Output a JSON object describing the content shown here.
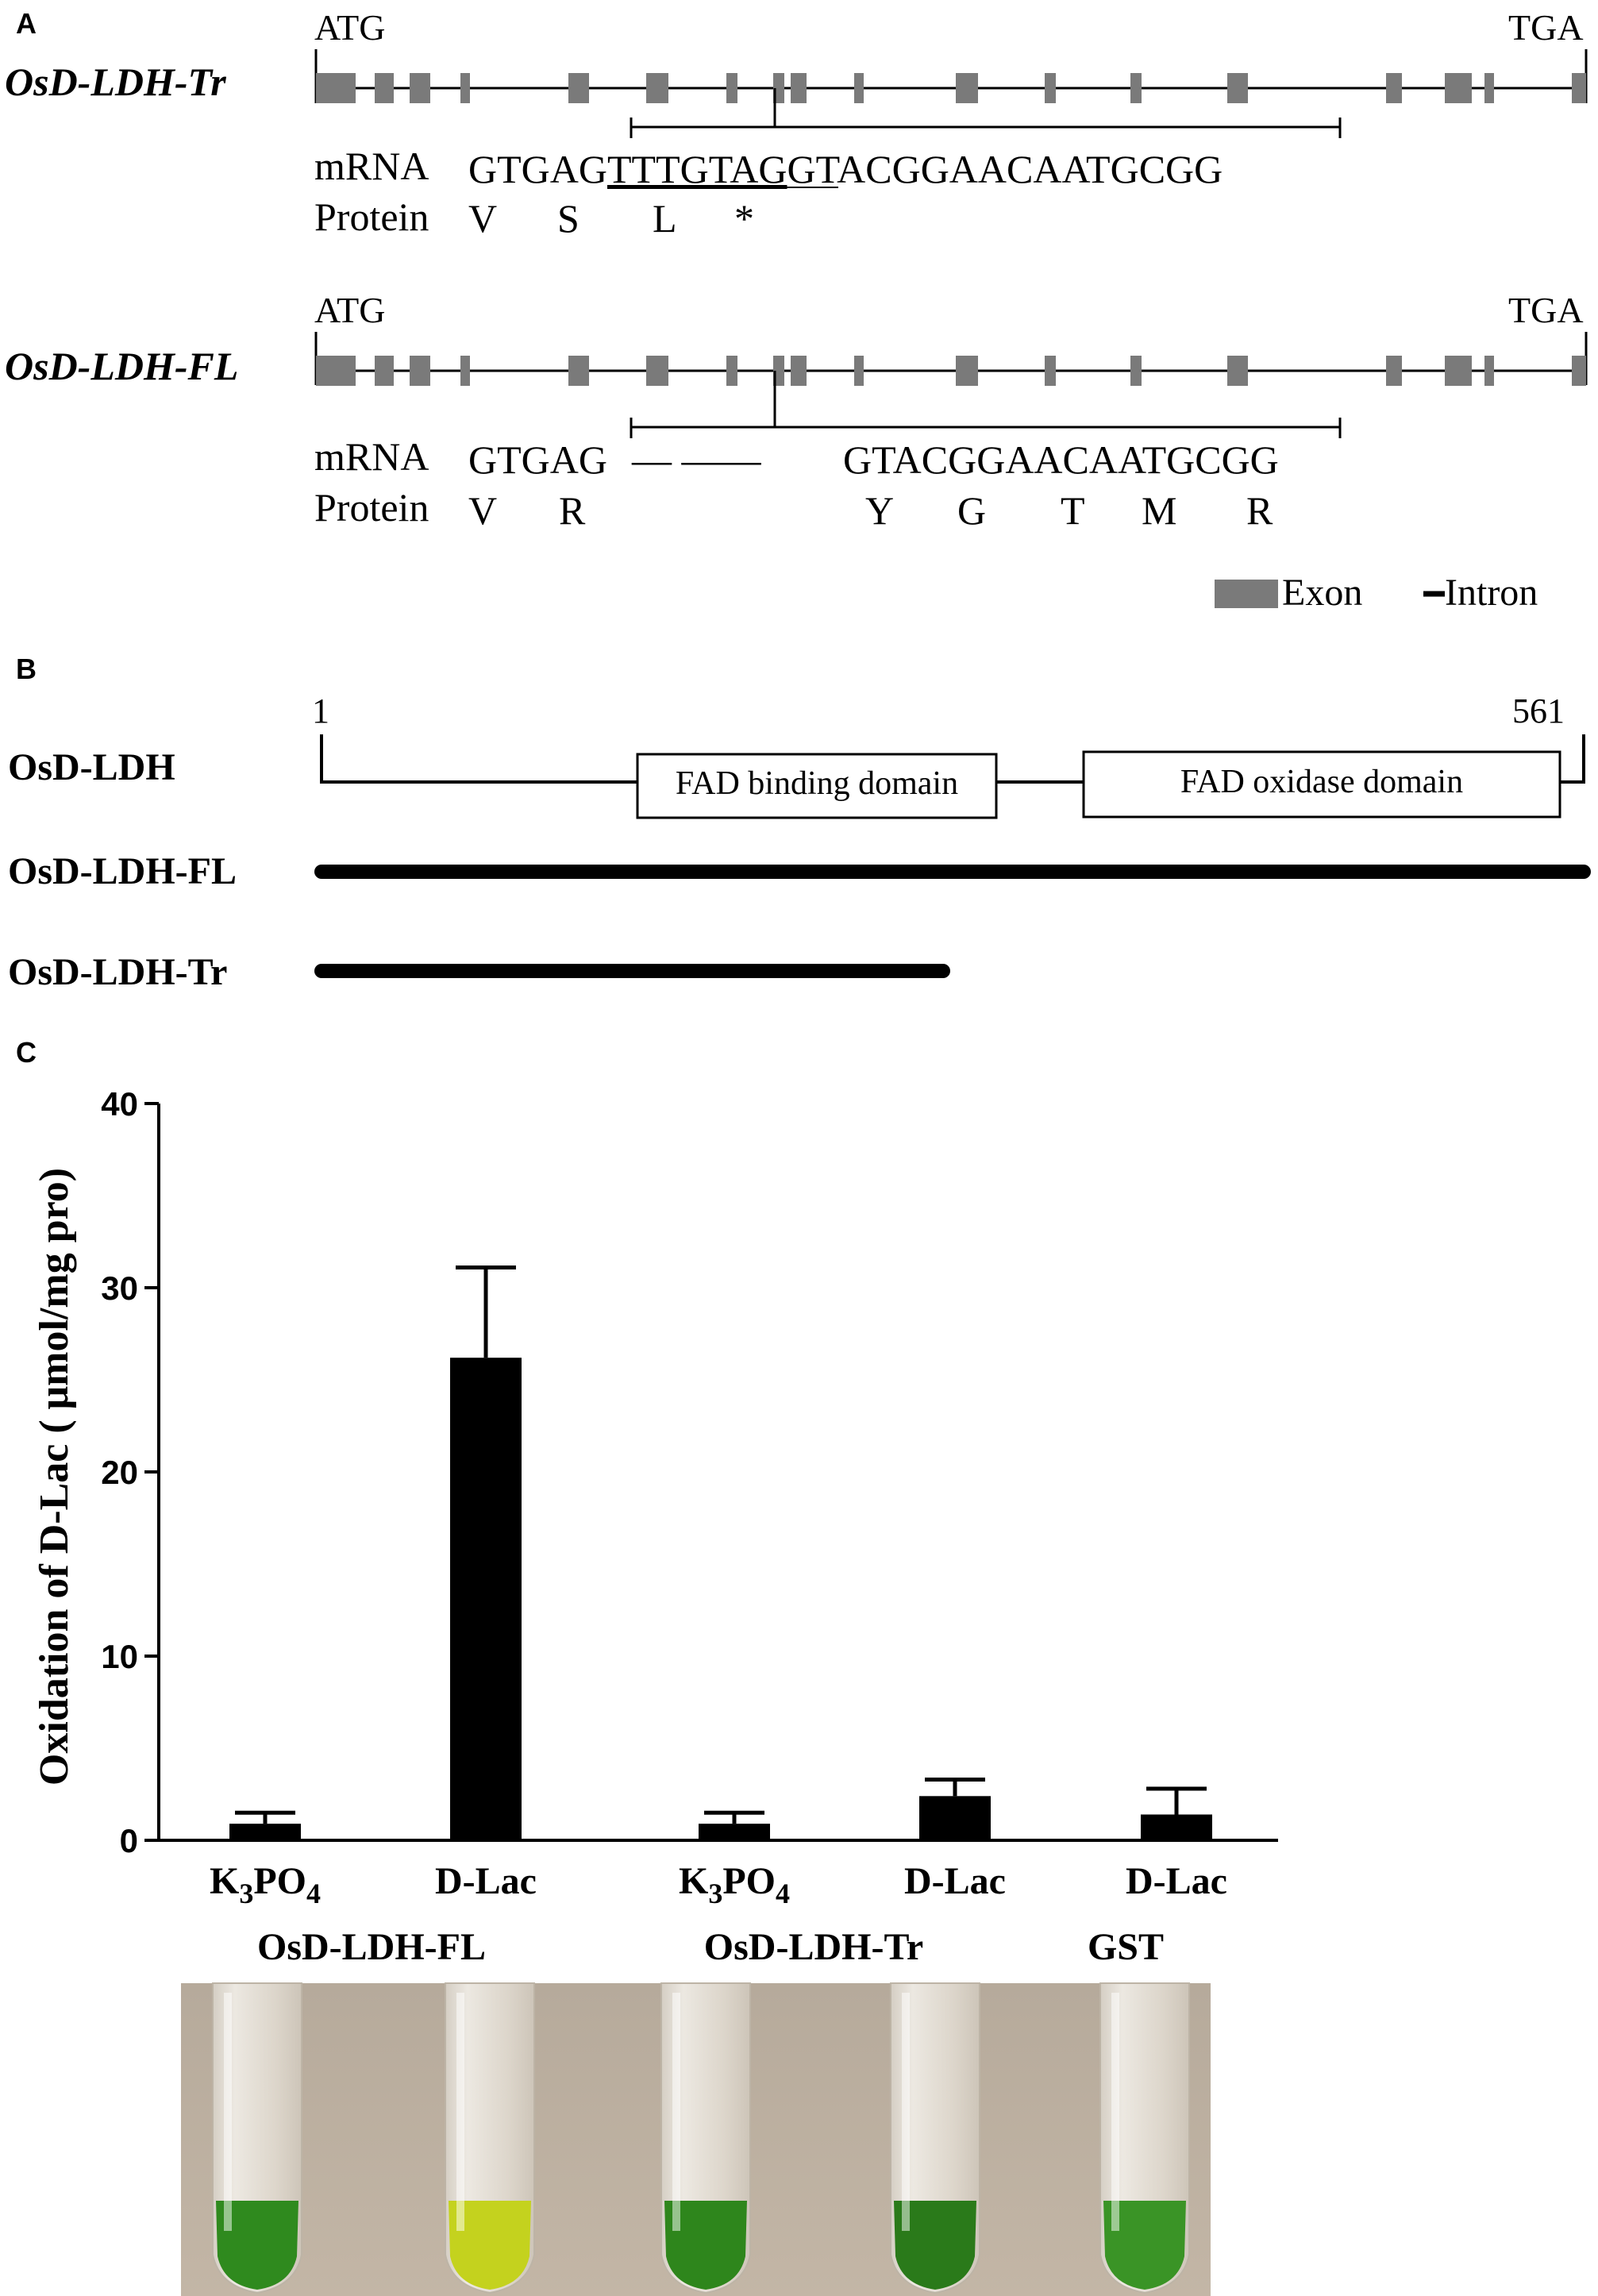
{
  "panel_a": {
    "letter": "A",
    "genes": [
      {
        "name": "OsD-LDH-Tr",
        "start_codon": "ATG",
        "stop_codon": "TGA",
        "mrna_label": "mRNA",
        "mrna_seq_prefix": "GTGAG",
        "mrna_seq_insert": "TTTGTAG",
        "mrna_seq_suffix": "GTACGGAACAATGCGG",
        "protein_label": "Protein",
        "protein_residues": [
          "V",
          "S",
          "L",
          "*"
        ]
      },
      {
        "name": "OsD-LDH-FL",
        "start_codon": "ATG",
        "stop_codon": "TGA",
        "mrna_label": "mRNA",
        "mrna_seq_prefix": "GTGAG",
        "mrna_seq_gap": "–– ––––",
        "mrna_seq_suffix": "GTACGGAACAATGCGG",
        "protein_label": "Protein",
        "protein_residues": [
          "V",
          "R",
          "Y",
          "G",
          "T",
          "M",
          "R"
        ]
      }
    ],
    "legend": {
      "exon": "Exon",
      "intron": "Intron",
      "exon_color": "#7a7a7a",
      "intron_color": "#000000"
    }
  },
  "panel_b": {
    "letter": "B",
    "protein_name": "OsD-LDH",
    "start_residue": "1",
    "end_residue": "561",
    "domains": [
      "FAD binding domain",
      "FAD oxidase domain"
    ],
    "constructs": [
      "OsD-LDH-FL",
      "OsD-LDH-Tr"
    ]
  },
  "panel_c": {
    "letter": "C",
    "ylabel": "Oxidation of D-Lac ( μmol/mg pro)",
    "groups": [
      "OsD-LDH-FL",
      "OsD-LDH-Tr",
      "GST"
    ],
    "photo": {
      "background": "#b9ac9c",
      "tube_liquid_colors": [
        "#2f8a1e",
        "#c4d21e",
        "#2e861c",
        "#2a7a1a",
        "#3a9426"
      ]
    }
  },
  "chart_data": {
    "type": "bar",
    "categories": [
      "K3PO4",
      "D-Lac",
      "K3PO4",
      "D-Lac",
      "D-Lac"
    ],
    "category_display": [
      {
        "main": "K",
        "sub1": "3",
        "mid": "PO",
        "sub2": "4"
      },
      {
        "main": "D-Lac"
      },
      {
        "main": "K",
        "sub1": "3",
        "mid": "PO",
        "sub2": "4"
      },
      {
        "main": "D-Lac"
      },
      {
        "main": "D-Lac"
      }
    ],
    "values": [
      0.9,
      26.2,
      0.9,
      2.4,
      1.4
    ],
    "errors": [
      0.6,
      4.9,
      0.6,
      0.9,
      1.4
    ],
    "ylabel": "Oxidation of D-Lac ( μmol/mg pro)",
    "ylim": [
      0,
      40
    ],
    "yticks": [
      "0",
      "10",
      "20",
      "30",
      "40"
    ],
    "bar_color": "#000000",
    "grid": false
  }
}
